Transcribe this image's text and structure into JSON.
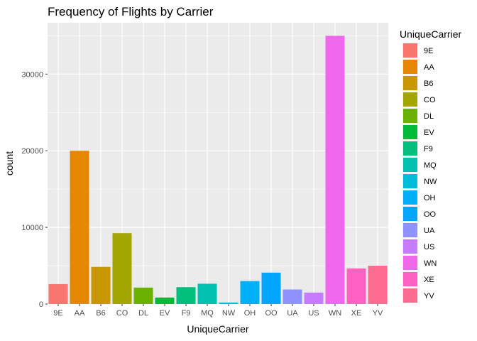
{
  "chart_data": {
    "type": "bar",
    "title": "Frequency of Flights by Carrier",
    "xlabel": "UniqueCarrier",
    "ylabel": "count",
    "ylim": [
      0,
      36700
    ],
    "yticks": [
      0,
      10000,
      20000,
      30000
    ],
    "grid": true,
    "legend": {
      "title": "UniqueCarrier",
      "position": "right"
    },
    "categories": [
      "9E",
      "AA",
      "B6",
      "CO",
      "DL",
      "EV",
      "F9",
      "MQ",
      "NW",
      "OH",
      "OO",
      "UA",
      "US",
      "WN",
      "XE",
      "YV"
    ],
    "values": [
      2600,
      20000,
      4850,
      9250,
      2150,
      850,
      2200,
      2650,
      200,
      3000,
      4100,
      1900,
      1500,
      35000,
      4650,
      5000
    ],
    "colors": [
      "#F8766D",
      "#E58700",
      "#C99800",
      "#A3A500",
      "#6BB100",
      "#00BA38",
      "#00BF7D",
      "#00C0AF",
      "#00BCD8",
      "#00B0F6",
      "#00A5FF",
      "#8E92FF",
      "#C77CFF",
      "#EF67EB",
      "#FF61C3",
      "#FF6C91"
    ]
  }
}
